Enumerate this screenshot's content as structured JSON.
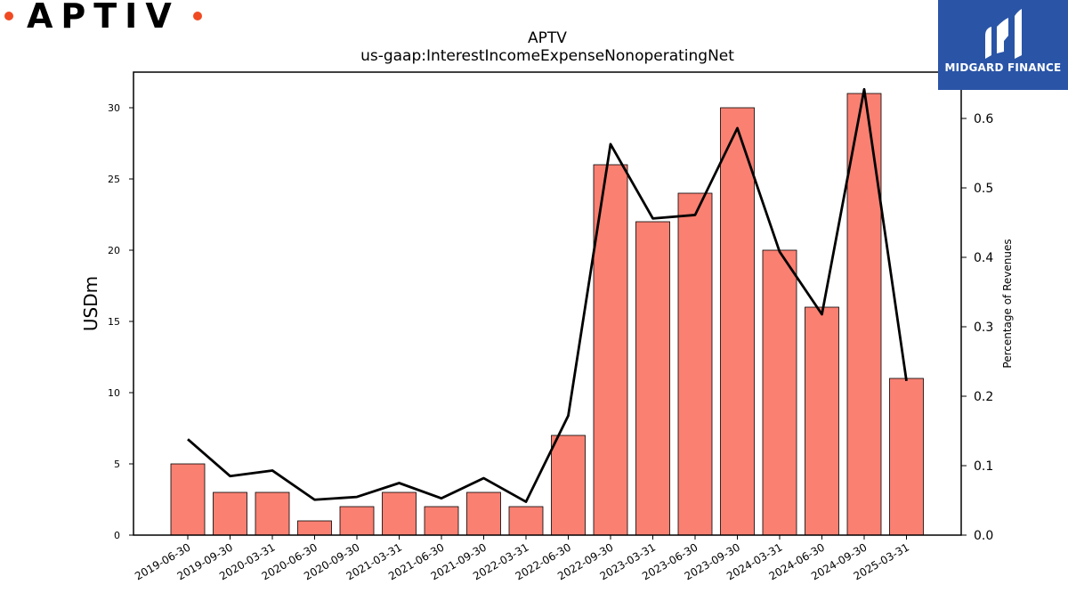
{
  "brand": {
    "logo_text": "APTIV",
    "accent": "#f04a23"
  },
  "badge": {
    "text": "MIDGARD FINANCE",
    "bg": "#2a55a7"
  },
  "chart_data": {
    "type": "bar",
    "title": "APTV",
    "subtitle": "us-gaap:InterestIncomeExpenseNonoperatingNet",
    "categories": [
      "2019-06-30",
      "2019-09-30",
      "2020-03-31",
      "2020-06-30",
      "2020-09-30",
      "2021-03-31",
      "2021-06-30",
      "2021-09-30",
      "2022-03-31",
      "2022-06-30",
      "2022-09-30",
      "2023-03-31",
      "2023-06-30",
      "2023-09-30",
      "2024-03-31",
      "2024-06-30",
      "2024-09-30",
      "2025-03-31"
    ],
    "series": [
      {
        "type": "bar",
        "axis": "left",
        "color": "#fa8072",
        "values": [
          5,
          3,
          3,
          1,
          2,
          3,
          2,
          3,
          2,
          7,
          26,
          22,
          24,
          30,
          20,
          16,
          31,
          11
        ]
      },
      {
        "type": "line",
        "axis": "right",
        "color": "#000000",
        "values": [
          0.138,
          0.085,
          0.093,
          0.051,
          0.055,
          0.075,
          0.053,
          0.082,
          0.048,
          0.172,
          0.563,
          0.456,
          0.461,
          0.586,
          0.408,
          0.318,
          0.642,
          0.222
        ]
      }
    ],
    "ylabel": "USDm",
    "y2label": "Percentage of Revenues",
    "ylim": [
      0,
      32.5
    ],
    "y2lim": [
      0,
      0.6667
    ],
    "yticks": [
      0,
      5,
      10,
      15,
      20,
      25,
      30
    ],
    "y2ticks": [
      "0.0",
      "0.1",
      "0.2",
      "0.3",
      "0.4",
      "0.5",
      "0.6"
    ],
    "grid": false,
    "legend": "none"
  }
}
